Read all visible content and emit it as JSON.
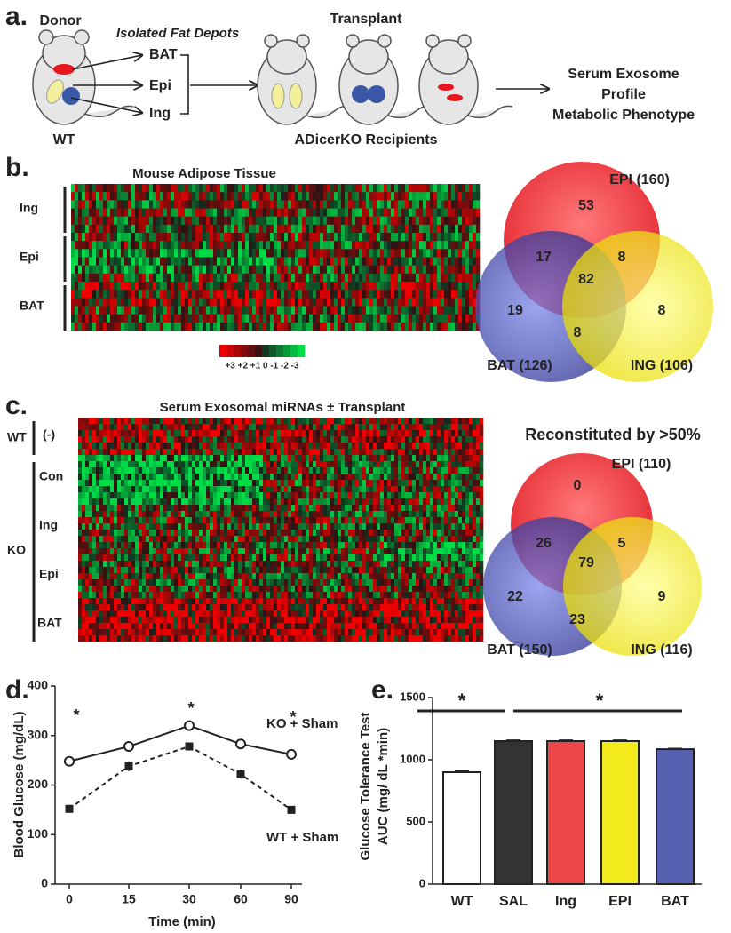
{
  "panel_a": {
    "label": "a.",
    "donor": "Donor",
    "depots_title": "Isolated Fat Depots",
    "depots": [
      "BAT",
      "Epi",
      "Ing"
    ],
    "donor_genotype": "WT",
    "transplant": "Transplant",
    "recipients": "ADicerKO Recipients",
    "outcomes": [
      "Serum Exosome",
      "Profile",
      "Metabolic Phenotype"
    ]
  },
  "panel_b": {
    "label": "b.",
    "heatmap_title": "Mouse Adipose Tissue",
    "row_groups": [
      "Ing",
      "Epi",
      "BAT"
    ],
    "scale_labels": "+3 +2 +1 0 -1 -2 -3",
    "venn": {
      "sets": [
        "EPI  (160)",
        "BAT (126)",
        "ING (106)"
      ],
      "counts": [
        53,
        17,
        8,
        82,
        19,
        8,
        8
      ]
    }
  },
  "panel_c": {
    "label": "c.",
    "heatmap_title": "Serum Exosomal miRNAs ± Transplant",
    "groups": [
      "WT",
      "KO"
    ],
    "row_groups": [
      "(-)",
      "Con",
      "Ing",
      "Epi",
      "BAT"
    ],
    "venn": {
      "title": "Reconstituted by >50%",
      "sets": [
        "EPI  (110)",
        "BAT (150)",
        "ING (116)"
      ],
      "counts": [
        0,
        26,
        5,
        79,
        22,
        23,
        9
      ]
    }
  },
  "chart_data": [
    {
      "type": "line",
      "panel": "d.",
      "categories": [
        "0",
        "15",
        "30",
        "60",
        "90"
      ],
      "xlabel": "Time (min)",
      "ylabel": "Blood Glucose (mg/dL)",
      "ylim": [
        0,
        400
      ],
      "yticks": [
        0,
        100,
        200,
        300,
        400
      ],
      "series": [
        {
          "name": "KO + Sham",
          "color": "#222222",
          "marker": "circle",
          "dashed": false,
          "values": [
            248,
            278,
            320,
            283,
            262
          ],
          "errors": [
            5,
            4,
            8,
            10,
            8
          ]
        },
        {
          "name": "WT + Sham",
          "color": "#222222",
          "marker": "square",
          "dashed": true,
          "values": [
            152,
            238,
            278,
            222,
            150
          ],
          "errors": [
            8,
            10,
            4,
            9,
            3
          ]
        }
      ],
      "significance": [
        "*",
        "*",
        "*"
      ]
    },
    {
      "type": "bar",
      "panel": "e.",
      "categories": [
        "WT",
        "SAL",
        "Ing",
        "EPI",
        "BAT"
      ],
      "ylabel": "Glucose Tolerance Test",
      "ylabel2": "AUC (mg/ dL *min)",
      "ylim": [
        0,
        1500
      ],
      "yticks": [
        0,
        500,
        1000,
        1500
      ],
      "values": [
        900,
        1150,
        1150,
        1150,
        1085
      ],
      "errors": [
        10,
        8,
        8,
        8,
        6
      ],
      "colors": [
        "#ffffff",
        "#333333",
        "#ec4646",
        "#f2ea1c",
        "#5560b0"
      ],
      "significance": [
        "*",
        "*"
      ]
    }
  ]
}
